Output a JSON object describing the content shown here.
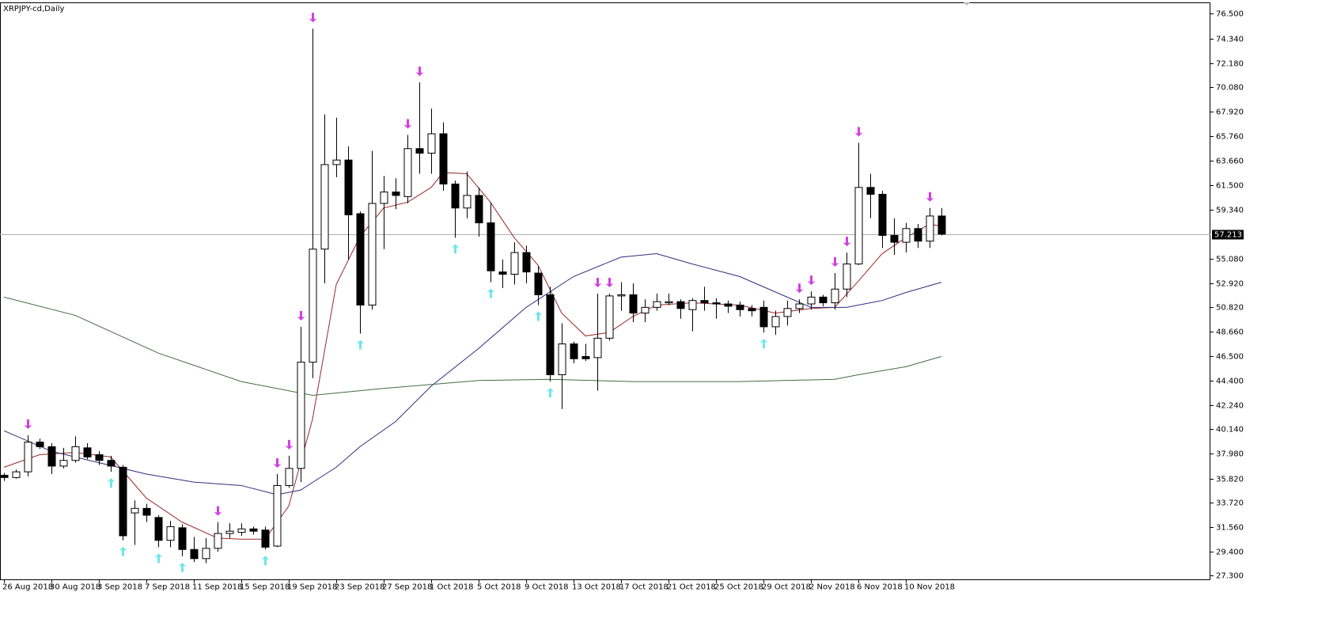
{
  "chart_data": {
    "type": "candlestick",
    "title": "XRPJPY-cd,Daily",
    "categories": [
      "26 Aug 2018",
      null,
      null,
      null,
      "30 Aug 2018",
      null,
      null,
      null,
      "3 Sep 2018",
      null,
      null,
      null,
      "7 Sep 2018",
      null,
      null,
      null,
      "11 Sep 2018",
      null,
      null,
      null,
      "15 Sep 2018",
      null,
      null,
      null,
      "19 Sep 2018",
      null,
      null,
      null,
      "23 Sep 2018",
      null,
      null,
      null,
      "27 Sep 2018",
      null,
      null,
      null,
      "1 Oct 2018",
      null,
      null,
      null,
      "5 Oct 2018",
      null,
      null,
      null,
      "9 Oct 2018",
      null,
      null,
      null,
      "13 Oct 2018",
      null,
      null,
      null,
      "17 Oct 2018",
      null,
      null,
      null,
      "21 Oct 2018",
      null,
      null,
      null,
      "25 Oct 2018",
      null,
      null,
      null,
      "29 Oct 2018",
      null,
      null,
      null,
      "2 Nov 2018",
      null,
      null,
      null,
      "6 Nov 2018",
      null,
      null,
      null,
      "10 Nov 2018",
      null,
      null,
      null
    ],
    "open": [
      36.1,
      35.9,
      36.4,
      39.0,
      38.6,
      36.9,
      37.4,
      38.5,
      37.9,
      37.4,
      36.8,
      32.8,
      33.2,
      32.4,
      30.4,
      31.5,
      29.6,
      28.8,
      29.7,
      31.0,
      31.1,
      31.4,
      31.3,
      29.9,
      35.2,
      36.7,
      46.0,
      55.9,
      63.3,
      63.7,
      59.0,
      51.0,
      59.9,
      60.9,
      60.5,
      64.7,
      64.3,
      66.0,
      61.6,
      59.5,
      60.6,
      58.2,
      53.9,
      53.7,
      55.6,
      53.8,
      51.9,
      44.9,
      47.6,
      46.5,
      46.4,
      48.1,
      51.8,
      51.9,
      50.3,
      50.8,
      51.2,
      51.3,
      50.6,
      51.4,
      51.2,
      51.1,
      51.0,
      50.7,
      50.8,
      49.1,
      50.0,
      50.7,
      51.1,
      51.7,
      51.2,
      52.4,
      54.6,
      61.3,
      60.7,
      57.1,
      56.5,
      57.7,
      56.6,
      58.8
    ],
    "high": [
      36.3,
      36.6,
      39.6,
      39.3,
      38.9,
      38.5,
      39.5,
      38.9,
      38.2,
      37.8,
      37.0,
      33.9,
      33.6,
      32.6,
      32.1,
      31.8,
      30.7,
      30.6,
      32.0,
      31.9,
      31.9,
      31.6,
      31.6,
      36.2,
      37.8,
      49.1,
      75.2,
      67.7,
      67.4,
      64.9,
      59.2,
      64.5,
      62.3,
      62.1,
      65.9,
      70.5,
      68.2,
      67.0,
      61.9,
      62.7,
      61.3,
      60.0,
      55.0,
      56.5,
      56.2,
      54.4,
      52.6,
      49.4,
      47.8,
      47.6,
      52.0,
      52.0,
      53.0,
      52.9,
      51.5,
      52.0,
      52.0,
      51.5,
      51.6,
      52.6,
      51.6,
      51.4,
      51.3,
      51.0,
      51.4,
      50.5,
      51.4,
      51.5,
      52.2,
      51.9,
      53.8,
      55.6,
      65.2,
      62.5,
      61.0,
      58.6,
      58.2,
      58.1,
      59.5,
      59.5
    ],
    "low": [
      35.6,
      35.8,
      36.0,
      38.4,
      36.2,
      36.7,
      37.2,
      37.5,
      37.0,
      36.4,
      30.4,
      30.0,
      32.0,
      29.8,
      29.8,
      29.0,
      28.5,
      28.4,
      29.4,
      30.6,
      30.8,
      30.9,
      29.6,
      29.8,
      35.0,
      35.5,
      44.6,
      52.9,
      62.2,
      55.0,
      48.5,
      50.6,
      55.9,
      59.4,
      59.9,
      62.5,
      62.5,
      61.0,
      56.9,
      58.6,
      57.0,
      53.0,
      52.5,
      52.8,
      52.9,
      51.0,
      44.3,
      41.9,
      45.9,
      46.1,
      43.5,
      47.9,
      50.5,
      49.5,
      49.5,
      50.5,
      51.0,
      49.8,
      48.7,
      50.5,
      49.8,
      50.3,
      50.0,
      50.0,
      48.6,
      48.4,
      49.2,
      50.3,
      50.6,
      50.9,
      50.6,
      51.7,
      54.5,
      58.6,
      56.0,
      55.4,
      55.6,
      56.0,
      56.0,
      57.1
    ],
    "close": [
      35.9,
      36.4,
      39.0,
      38.6,
      36.9,
      37.4,
      38.6,
      37.7,
      37.4,
      36.9,
      30.8,
      33.2,
      32.6,
      30.4,
      31.6,
      29.6,
      28.8,
      29.7,
      31.0,
      31.2,
      31.4,
      31.2,
      29.8,
      35.2,
      36.7,
      46.0,
      55.9,
      63.3,
      63.7,
      58.9,
      51.0,
      59.9,
      60.9,
      60.6,
      64.7,
      64.3,
      66.0,
      61.6,
      59.5,
      60.6,
      58.2,
      54.0,
      53.7,
      55.6,
      53.9,
      51.9,
      44.9,
      47.6,
      46.3,
      46.3,
      48.1,
      51.8,
      51.9,
      50.3,
      50.8,
      51.3,
      51.3,
      50.7,
      51.4,
      51.2,
      51.1,
      50.9,
      50.6,
      50.5,
      49.1,
      50.0,
      50.7,
      51.1,
      51.7,
      51.2,
      52.4,
      54.6,
      61.3,
      60.7,
      57.1,
      56.5,
      57.7,
      56.6,
      58.8,
      57.213
    ],
    "moving_averages": [
      {
        "color": "#9a2a2a",
        "x": [
          0,
          3,
          6,
          9,
          12,
          15,
          18,
          20,
          22,
          24,
          26,
          28,
          30,
          32,
          34,
          36,
          37,
          39,
          41,
          43,
          45,
          47,
          49,
          51,
          53,
          55,
          58,
          62,
          65,
          68,
          70,
          72,
          74,
          76,
          78,
          79
        ],
        "values": [
          36.8,
          37.9,
          38.1,
          37.7,
          34.1,
          32.0,
          30.6,
          30.5,
          30.5,
          33.4,
          41.0,
          52.8,
          57.0,
          59.5,
          60.0,
          61.3,
          62.6,
          62.5,
          60.0,
          56.9,
          54.5,
          50.3,
          48.3,
          48.6,
          50.0,
          51.0,
          51.2,
          51.0,
          50.3,
          50.7,
          50.8,
          53.1,
          55.5,
          56.9,
          58.1,
          57.9
        ]
      },
      {
        "color": "#2e2e7e",
        "x": [
          0,
          4,
          8,
          12,
          16,
          20,
          23,
          25,
          28,
          30,
          33,
          36,
          40,
          44,
          48,
          52,
          55,
          58,
          62,
          66,
          68,
          71,
          74,
          76,
          79
        ],
        "values": [
          40.0,
          38.2,
          37.2,
          36.2,
          35.5,
          35.2,
          34.4,
          34.8,
          36.8,
          38.6,
          40.8,
          43.9,
          47.2,
          50.8,
          53.5,
          55.2,
          55.5,
          54.6,
          53.5,
          51.7,
          50.8,
          50.8,
          51.4,
          52.1,
          53.0
        ]
      },
      {
        "color": "#456b45",
        "x": [
          0,
          6,
          13,
          20,
          26,
          32,
          40,
          46,
          53,
          62,
          70,
          72,
          76,
          79
        ],
        "values": [
          51.7,
          50.1,
          46.8,
          44.3,
          43.1,
          43.7,
          44.4,
          44.5,
          44.3,
          44.3,
          44.5,
          44.9,
          45.6,
          46.5
        ]
      }
    ],
    "arrows_high": {
      "color": "#d23ede",
      "bars": [
        2,
        18,
        23,
        24,
        25,
        26,
        34,
        35,
        50,
        51,
        67,
        68,
        70,
        71,
        72,
        78
      ]
    },
    "arrows_low": {
      "color": "#6ee6ea",
      "bars": [
        9,
        10,
        13,
        15,
        22,
        30,
        38,
        41,
        45,
        46,
        64
      ]
    },
    "price_line": 57.213,
    "ylim": [
      26.95,
      77.47
    ],
    "yticks": [
      {
        "value": 76.5,
        "label": "76.500"
      },
      {
        "value": 74.34,
        "label": "74.340"
      },
      {
        "value": 72.18,
        "label": "72.180"
      },
      {
        "value": 70.08,
        "label": "70.080"
      },
      {
        "value": 67.92,
        "label": "67.920"
      },
      {
        "value": 65.76,
        "label": "65.760"
      },
      {
        "value": 63.66,
        "label": "63.660"
      },
      {
        "value": 61.5,
        "label": "61.500"
      },
      {
        "value": 59.34,
        "label": "59.340"
      },
      {
        "value": 55.08,
        "label": "55.080"
      },
      {
        "value": 52.92,
        "label": "52.920"
      },
      {
        "value": 50.82,
        "label": "50.820"
      },
      {
        "value": 48.66,
        "label": "48.660"
      },
      {
        "value": 46.5,
        "label": "46.500"
      },
      {
        "value": 44.4,
        "label": "44.400"
      },
      {
        "value": 42.24,
        "label": "42.240"
      },
      {
        "value": 40.14,
        "label": "40.140"
      },
      {
        "value": 37.98,
        "label": "37.980"
      },
      {
        "value": 35.82,
        "label": "35.820"
      },
      {
        "value": 33.72,
        "label": "33.720"
      },
      {
        "value": 31.56,
        "label": "31.560"
      },
      {
        "value": 29.4,
        "label": "29.400"
      },
      {
        "value": 27.3,
        "label": "27.300"
      }
    ]
  }
}
